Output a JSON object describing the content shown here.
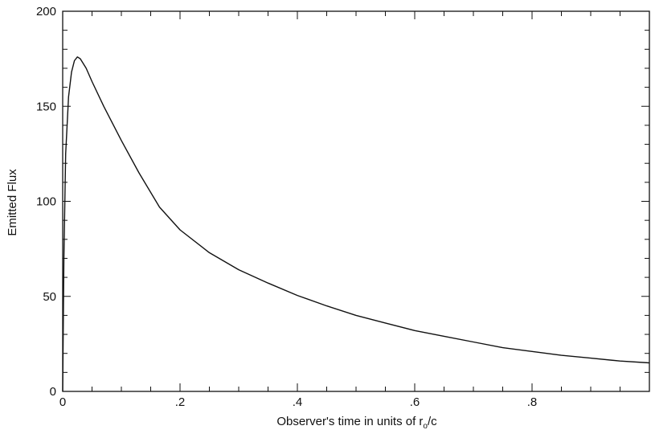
{
  "chart_data": {
    "type": "line",
    "xlabel": "Observer's time in units of r",
    "xlabel_subscript": "o",
    "xlabel_suffix": "/c",
    "ylabel": "Emitted Flux",
    "xlim": [
      0,
      1.0
    ],
    "ylim": [
      0,
      200
    ],
    "x_ticks": [
      0,
      0.2,
      0.4,
      0.6,
      0.8
    ],
    "x_tick_labels": [
      "0",
      ".2",
      ".4",
      ".6",
      ".8"
    ],
    "y_ticks": [
      0,
      50,
      100,
      150,
      200
    ],
    "y_tick_labels": [
      "0",
      "50",
      "100",
      "150",
      "200"
    ],
    "grid": false,
    "series": [
      {
        "color": "#111111",
        "x": [
          0.0,
          0.002,
          0.005,
          0.01,
          0.015,
          0.02,
          0.025,
          0.03,
          0.04,
          0.05,
          0.07,
          0.1,
          0.13,
          0.165,
          0.2,
          0.25,
          0.3,
          0.35,
          0.4,
          0.45,
          0.5,
          0.55,
          0.6,
          0.65,
          0.7,
          0.75,
          0.8,
          0.85,
          0.9,
          0.95,
          1.0
        ],
        "y": [
          0,
          70,
          125,
          155,
          168,
          174,
          176,
          175,
          170,
          163,
          150,
          132,
          115,
          97,
          85,
          73,
          64,
          57,
          50.5,
          45,
          40,
          36,
          32,
          29,
          26,
          23,
          21,
          19,
          17.5,
          16,
          15
        ]
      }
    ]
  }
}
